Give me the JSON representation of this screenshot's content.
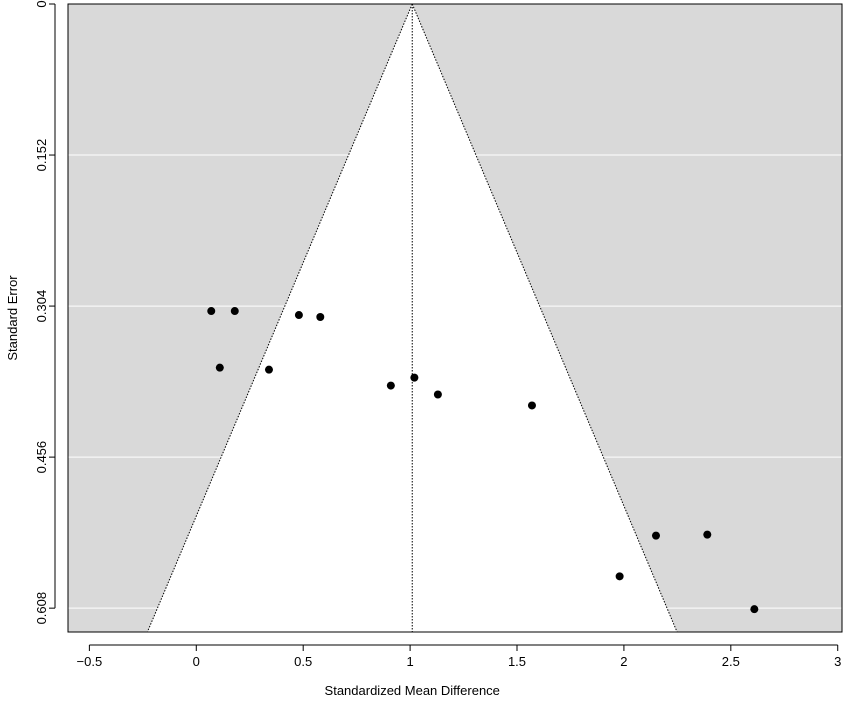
{
  "chart_data": {
    "type": "scatter",
    "title": "",
    "xlabel": "Standardized Mean Difference",
    "ylabel": "Standard Error",
    "xlim": [
      -0.6,
      3.02
    ],
    "ylim": [
      0,
      0.632
    ],
    "y_reversed": true,
    "x_ticks": [
      -0.5,
      0,
      0.5,
      1,
      1.5,
      2,
      2.5,
      3
    ],
    "x_tick_labels": [
      "−0.5",
      "0",
      "0.5",
      "1",
      "1.5",
      "2",
      "2.5",
      "3"
    ],
    "y_ticks": [
      0,
      0.152,
      0.304,
      0.456,
      0.608
    ],
    "y_tick_labels": [
      "0",
      "0.152",
      "0.304",
      "0.456",
      "0.608"
    ],
    "grid": "horizontal",
    "legend": "none",
    "pooled_estimate": 1.01,
    "funnel_apex_se": 0,
    "points": [
      {
        "x": 0.07,
        "y": 0.309
      },
      {
        "x": 0.18,
        "y": 0.309
      },
      {
        "x": 0.48,
        "y": 0.313
      },
      {
        "x": 0.58,
        "y": 0.315
      },
      {
        "x": 0.11,
        "y": 0.366
      },
      {
        "x": 0.34,
        "y": 0.368
      },
      {
        "x": 0.91,
        "y": 0.384
      },
      {
        "x": 1.02,
        "y": 0.376
      },
      {
        "x": 1.13,
        "y": 0.393
      },
      {
        "x": 1.57,
        "y": 0.404
      },
      {
        "x": 1.98,
        "y": 0.576
      },
      {
        "x": 2.15,
        "y": 0.535
      },
      {
        "x": 2.39,
        "y": 0.534
      },
      {
        "x": 2.61,
        "y": 0.609
      }
    ],
    "colors": {
      "background": "#d9d9d9",
      "funnel": "#ffffff",
      "points": "#000000",
      "gridlines": "#ffffff"
    }
  }
}
